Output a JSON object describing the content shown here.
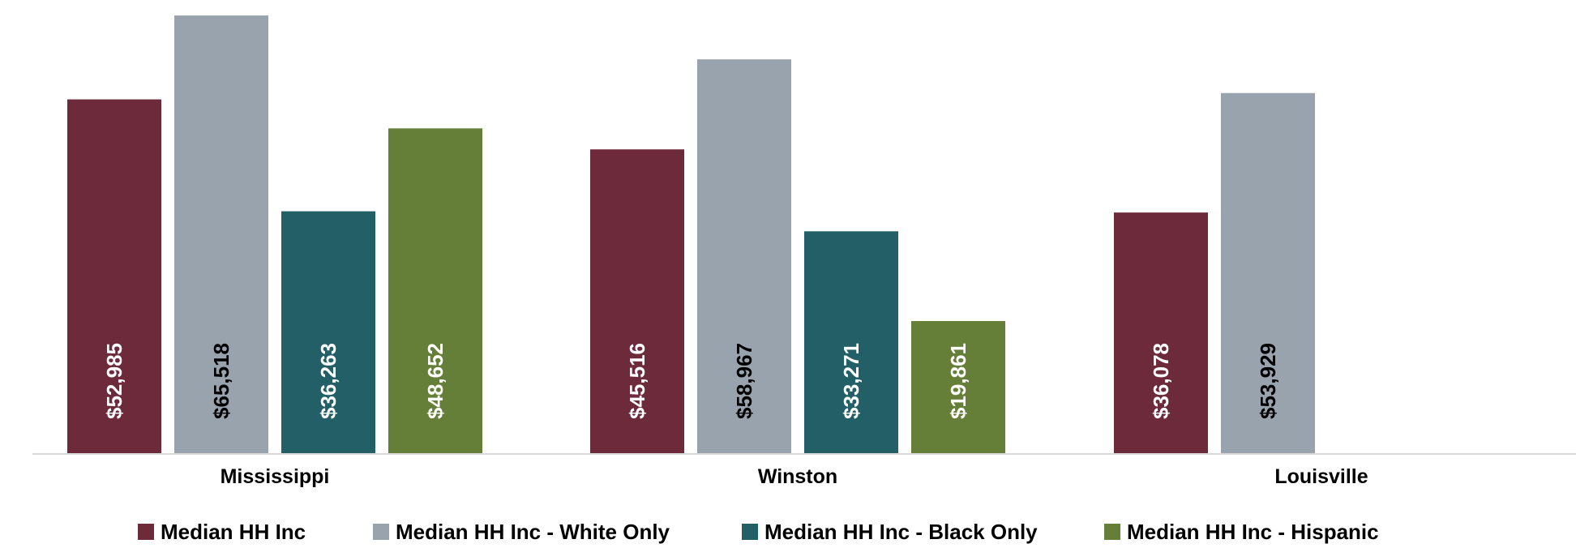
{
  "chart_data": {
    "type": "bar",
    "categories": [
      "Mississippi",
      "Winston",
      "Louisville"
    ],
    "series": [
      {
        "name": "Median HH Inc",
        "color": "#6D2A3A",
        "label_color": "#FFFFFF",
        "values": [
          52985,
          45516,
          36078
        ],
        "labels": [
          "$52,985",
          "$45,516",
          "$36,078"
        ]
      },
      {
        "name": "Median HH Inc - White Only",
        "color": "#98A3AD",
        "label_color": "#000000",
        "values": [
          65518,
          58967,
          53929
        ],
        "labels": [
          "$65,518",
          "$58,967",
          "$53,929"
        ]
      },
      {
        "name": "Median HH Inc - Black Only",
        "color": "#235F66",
        "label_color": "#FFFFFF",
        "values": [
          36263,
          33271,
          null
        ],
        "labels": [
          "$36,263",
          "$33,271",
          ""
        ]
      },
      {
        "name": "Median HH Inc - Hispanic",
        "color": "#667F38",
        "label_color": "#FFFFFF",
        "values": [
          48652,
          19861,
          null
        ],
        "labels": [
          "$48,652",
          "$19,861",
          ""
        ]
      }
    ],
    "ylim": [
      0,
      66500
    ],
    "grid": false,
    "legend_position": "bottom",
    "axis_color": "#D9D9D9"
  }
}
